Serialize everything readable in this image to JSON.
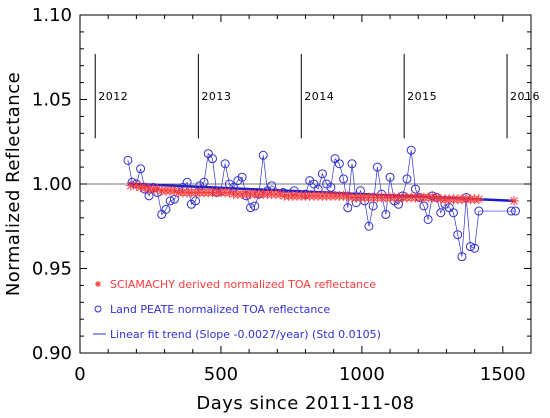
{
  "chart_data": {
    "type": "scatter",
    "xlabel": "Days since 2011-11-08",
    "ylabel": "Normalized Reflectance",
    "xlim": [
      0,
      1600
    ],
    "ylim": [
      0.9,
      1.1
    ],
    "x_ticks": [
      0,
      500,
      1000,
      1500
    ],
    "y_ticks": [
      "0.90",
      "0.95",
      "1.00",
      "1.05",
      "1.10"
    ],
    "reference_line": 1.0,
    "year_markers": [
      {
        "x": 54,
        "label": "2012"
      },
      {
        "x": 420,
        "label": "2013"
      },
      {
        "x": 785,
        "label": "2014"
      },
      {
        "x": 1150,
        "label": "2015"
      },
      {
        "x": 1515,
        "label": "2016"
      }
    ],
    "colors": {
      "sciamachy": "#ff3b3b",
      "land_peate": "#3030d0",
      "fit": "#1a1ac8",
      "axis": "#000000",
      "reference": "#777777"
    },
    "legend": [
      {
        "symbol": "*",
        "text": "SCIAMACHY derived normalized TOA reflectance",
        "color": "#ff3b3b"
      },
      {
        "symbol": "o",
        "text": "Land PEATE normalized TOA reflectance",
        "color": "#3030d0"
      },
      {
        "symbol": "—",
        "text": "Linear fit trend (Slope -0.0027/year) (Std 0.0105)",
        "color": "#3030d0"
      }
    ],
    "series": [
      {
        "name": "SCIAMACHY derived normalized TOA reflectance",
        "marker": "asterisk",
        "x": [
          180,
          200,
          215,
          230,
          245,
          260,
          275,
          290,
          305,
          320,
          335,
          350,
          365,
          380,
          395,
          410,
          425,
          440,
          455,
          470,
          485,
          500,
          515,
          530,
          545,
          560,
          575,
          590,
          605,
          620,
          635,
          650,
          665,
          680,
          695,
          710,
          725,
          740,
          755,
          770,
          785,
          800,
          815,
          830,
          845,
          860,
          875,
          890,
          905,
          920,
          935,
          950,
          965,
          980,
          995,
          1010,
          1025,
          1040,
          1055,
          1070,
          1085,
          1100,
          1115,
          1130,
          1145,
          1160,
          1175,
          1190,
          1205,
          1220,
          1235,
          1250,
          1265,
          1280,
          1295,
          1310,
          1325,
          1340,
          1355,
          1370,
          1385,
          1400,
          1415,
          1540
        ],
        "y": [
          0.999,
          0.999,
          0.998,
          0.998,
          0.997,
          0.997,
          0.997,
          0.996,
          0.996,
          0.996,
          0.996,
          0.995,
          0.995,
          0.995,
          0.995,
          0.995,
          0.995,
          0.995,
          0.995,
          0.995,
          0.995,
          0.995,
          0.995,
          0.995,
          0.994,
          0.994,
          0.994,
          0.994,
          0.994,
          0.994,
          0.994,
          0.994,
          0.994,
          0.994,
          0.994,
          0.994,
          0.993,
          0.993,
          0.993,
          0.993,
          0.993,
          0.993,
          0.993,
          0.993,
          0.993,
          0.993,
          0.993,
          0.993,
          0.993,
          0.993,
          0.993,
          0.993,
          0.992,
          0.992,
          0.992,
          0.992,
          0.992,
          0.992,
          0.992,
          0.992,
          0.992,
          0.992,
          0.992,
          0.992,
          0.992,
          0.992,
          0.992,
          0.992,
          0.992,
          0.992,
          0.992,
          0.992,
          0.992,
          0.991,
          0.991,
          0.991,
          0.991,
          0.991,
          0.991,
          0.991,
          0.991,
          0.991,
          0.991,
          0.99
        ]
      },
      {
        "name": "Land PEATE normalized TOA reflectance",
        "marker": "circle",
        "x": [
          170,
          185,
          200,
          215,
          230,
          245,
          260,
          275,
          290,
          305,
          320,
          335,
          350,
          365,
          380,
          395,
          410,
          425,
          440,
          455,
          470,
          485,
          500,
          515,
          530,
          545,
          560,
          575,
          590,
          605,
          620,
          635,
          650,
          665,
          680,
          720,
          760,
          800,
          815,
          830,
          845,
          860,
          875,
          890,
          905,
          920,
          935,
          950,
          965,
          980,
          995,
          1010,
          1025,
          1040,
          1055,
          1070,
          1085,
          1100,
          1115,
          1130,
          1145,
          1160,
          1175,
          1190,
          1205,
          1220,
          1235,
          1250,
          1265,
          1280,
          1295,
          1310,
          1325,
          1340,
          1355,
          1370,
          1385,
          1400,
          1415,
          1530,
          1545
        ],
        "y": [
          1.014,
          1.001,
          1.0,
          1.009,
          0.997,
          0.993,
          0.998,
          0.995,
          0.982,
          0.985,
          0.99,
          0.991,
          0.997,
          0.998,
          1.001,
          0.988,
          0.99,
          0.999,
          1.001,
          1.018,
          1.015,
          0.995,
          0.996,
          1.012,
          1.0,
          0.998,
          1.002,
          1.004,
          0.993,
          0.986,
          0.987,
          0.994,
          1.017,
          0.996,
          0.999,
          0.995,
          0.996,
          0.994,
          1.002,
          1.0,
          0.997,
          1.006,
          1.0,
          0.998,
          1.015,
          1.012,
          1.003,
          0.986,
          1.012,
          0.989,
          0.996,
          0.99,
          0.975,
          0.987,
          1.01,
          0.994,
          0.982,
          1.004,
          0.99,
          0.988,
          0.993,
          1.003,
          1.02,
          0.997,
          0.992,
          0.987,
          0.979,
          0.993,
          0.992,
          0.983,
          0.988,
          0.986,
          0.983,
          0.97,
          0.957,
          0.992,
          0.963,
          0.962,
          0.984,
          0.984,
          0.984
        ]
      }
    ],
    "fit_line": {
      "name": "Linear fit trend",
      "x": [
        170,
        1545
      ],
      "y": [
        1.0002,
        0.99
      ]
    }
  }
}
